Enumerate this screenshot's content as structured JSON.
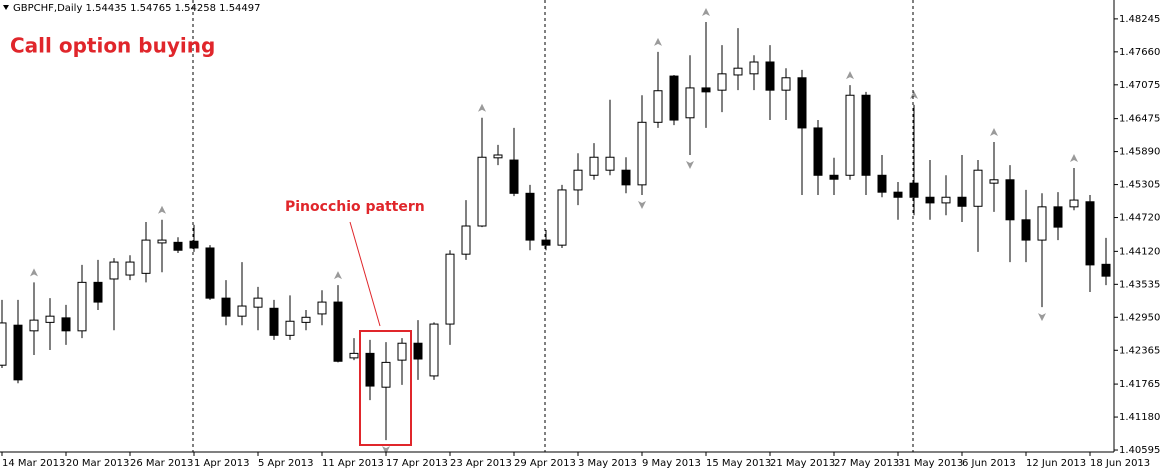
{
  "header": "GBPCHF,Daily  1.54435 1.54765 1.54258 1.54497",
  "annotations": {
    "strategy": "Call option buying",
    "pattern": "Pinocchio pattern"
  },
  "chart_data": {
    "type": "candlestick",
    "up_color": "#ffffff",
    "down_color": "#000000",
    "outline_color": "#000000",
    "ylim": [
      1.4056,
      1.4858
    ],
    "yticks": [
      1.48245,
      {
        "value": 1.4766,
        "label": "1.47660"
      },
      1.47075,
      1.46475,
      {
        "value": 1.4589,
        "label": "1.45890"
      },
      1.45305,
      {
        "value": 1.4472,
        "label": "1.44720"
      },
      {
        "value": 1.4412,
        "label": "1.44120"
      },
      1.43535,
      {
        "value": 1.4295,
        "label": "1.42950"
      },
      1.42365,
      1.41765,
      {
        "value": 1.4118,
        "label": "1.41180"
      },
      1.40595
    ],
    "categories": [
      "14 Mar 2013",
      null,
      null,
      null,
      "20 Mar 2013",
      null,
      null,
      null,
      "26 Mar 2013",
      null,
      null,
      null,
      "1 Apr 2013",
      null,
      null,
      null,
      "5 Apr 2013",
      null,
      null,
      null,
      "11 Apr 2013",
      null,
      null,
      null,
      "17 Apr 2013",
      null,
      null,
      null,
      "23 Apr 2013",
      null,
      null,
      null,
      "29 Apr 2013",
      null,
      null,
      null,
      "3 May 2013",
      null,
      null,
      null,
      "9 May 2013",
      null,
      null,
      null,
      "15 May 2013",
      null,
      null,
      null,
      "21 May 2013",
      null,
      null,
      null,
      "27 May 2013",
      null,
      null,
      null,
      "31 May 2013",
      null,
      null,
      null,
      "6 Jun 2013",
      null,
      null,
      null,
      "12 Jun 2013",
      null,
      null,
      null,
      "18 Jun 2013",
      null
    ],
    "open": [
      1.421,
      1.4281,
      1.4271,
      1.4286,
      1.4294,
      1.4271,
      1.4357,
      1.4363,
      1.437,
      1.4373,
      1.4427,
      1.4428,
      1.443,
      1.4418,
      1.4329,
      1.4297,
      1.4313,
      1.4311,
      1.4263,
      1.4286,
      1.4301,
      1.4322,
      1.4223,
      1.4231,
      1.4171,
      1.4219,
      1.4249,
      1.4191,
      1.4283,
      1.4407,
      1.4457,
      1.4578,
      1.4574,
      1.4515,
      1.4432,
      1.4423,
      1.4521,
      1.4547,
      1.4556,
      1.4556,
      1.453,
      1.4641,
      1.4723,
      1.4649,
      1.4702,
      1.4698,
      1.4725,
      1.4727,
      1.4748,
      1.4698,
      1.472,
      1.4631,
      1.4547,
      1.4547,
      1.4689,
      1.4547,
      1.4517,
      1.4533,
      1.4508,
      1.4498,
      1.4508,
      1.4492,
      1.4533,
      1.4539,
      1.4468,
      1.4432,
      1.4491,
      1.4491,
      1.45,
      1.4389
    ],
    "high": [
      1.4326,
      1.4326,
      1.4357,
      1.4329,
      1.4317,
      1.4388,
      1.4397,
      1.44,
      1.4405,
      1.4464,
      1.4468,
      1.4437,
      1.4459,
      1.4423,
      1.4361,
      1.4393,
      1.4349,
      1.4326,
      1.4334,
      1.4308,
      1.4343,
      1.4352,
      1.4258,
      1.4255,
      1.4251,
      1.4258,
      1.429,
      1.4286,
      1.4414,
      1.4503,
      1.4649,
      1.4601,
      1.4631,
      1.453,
      1.445,
      1.453,
      1.4586,
      1.4604,
      1.4681,
      1.4579,
      1.4689,
      1.4766,
      1.4725,
      1.476,
      1.4819,
      1.4778,
      1.4808,
      1.476,
      1.4778,
      1.4737,
      1.4734,
      1.4645,
      1.4578,
      1.4707,
      1.4695,
      1.4583,
      1.4535,
      1.4672,
      1.4574,
      1.4547,
      1.4583,
      1.4574,
      1.4606,
      1.4565,
      1.4521,
      1.4515,
      1.4517,
      1.456,
      1.4512,
      1.4436
    ],
    "low": [
      1.4205,
      1.4178,
      1.4228,
      1.4237,
      1.4246,
      1.4258,
      1.4308,
      1.4272,
      1.4361,
      1.4357,
      1.4375,
      1.4409,
      1.4411,
      1.4326,
      1.4281,
      1.4281,
      1.4272,
      1.4255,
      1.4255,
      1.4272,
      1.4281,
      1.4215,
      1.4219,
      1.4148,
      1.4077,
      1.4175,
      1.4184,
      1.4184,
      1.4246,
      1.4397,
      1.4455,
      1.4565,
      1.451,
      1.4414,
      1.4414,
      1.4418,
      1.4494,
      1.4539,
      1.4547,
      1.4515,
      1.4512,
      1.4631,
      1.4636,
      1.4583,
      1.4631,
      1.4659,
      1.4698,
      1.4698,
      1.4645,
      1.4645,
      1.4512,
      1.4512,
      1.4512,
      1.4539,
      1.4512,
      1.4508,
      1.4468,
      1.4476,
      1.4468,
      1.4476,
      1.4464,
      1.4411,
      1.4482,
      1.4393,
      1.4393,
      1.4313,
      1.4432,
      1.4485,
      1.434,
      1.4352
    ],
    "close": [
      1.4285,
      1.4184,
      1.429,
      1.4297,
      1.4271,
      1.4357,
      1.4322,
      1.4393,
      1.4393,
      1.4432,
      1.4432,
      1.4414,
      1.4418,
      1.4329,
      1.4297,
      1.4315,
      1.4329,
      1.4263,
      1.4288,
      1.4295,
      1.4322,
      1.4217,
      1.4231,
      1.4173,
      1.4215,
      1.4249,
      1.4221,
      1.4283,
      1.4407,
      1.4457,
      1.4579,
      1.4583,
      1.4515,
      1.4432,
      1.4423,
      1.4521,
      1.4556,
      1.4579,
      1.4579,
      1.453,
      1.4641,
      1.4697,
      1.4645,
      1.4702,
      1.4695,
      1.4727,
      1.4737,
      1.4748,
      1.4698,
      1.472,
      1.4631,
      1.4547,
      1.454,
      1.4689,
      1.4547,
      1.4517,
      1.4508,
      1.4508,
      1.4498,
      1.4508,
      1.4492,
      1.4556,
      1.4539,
      1.4468,
      1.4432,
      1.4491,
      1.4455,
      1.4503,
      1.4388,
      1.4368
    ]
  }
}
